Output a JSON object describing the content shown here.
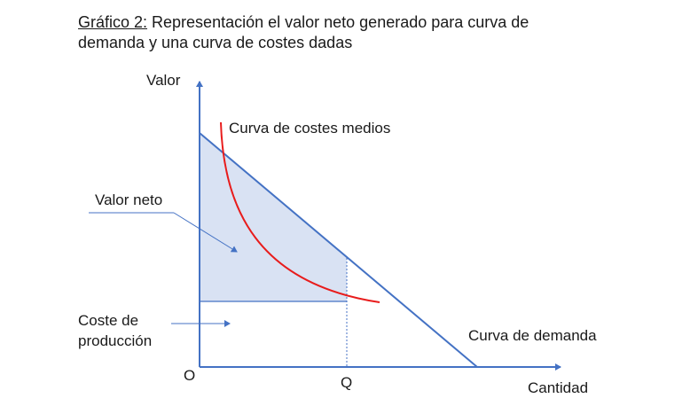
{
  "title": {
    "prefix": "Gráfico 2:",
    "line1": " Representación el valor neto generado para curva de",
    "line2": "demanda y una curva de costes dadas"
  },
  "axes": {
    "y_label": "Valor",
    "x_label": "Cantidad",
    "origin_label": "O",
    "q_label": "Q"
  },
  "labels": {
    "average_cost_curve": "Curva de costes medios",
    "demand_curve": "Curva de demanda",
    "net_value": "Valor neto",
    "production_cost_line1": "Coste de",
    "production_cost_line2": "producción"
  },
  "colors": {
    "axis": "#4472c4",
    "demand": "#4472c4",
    "cost_curve": "#e81c1c",
    "net_value_fill": "#d9e2f3"
  }
}
